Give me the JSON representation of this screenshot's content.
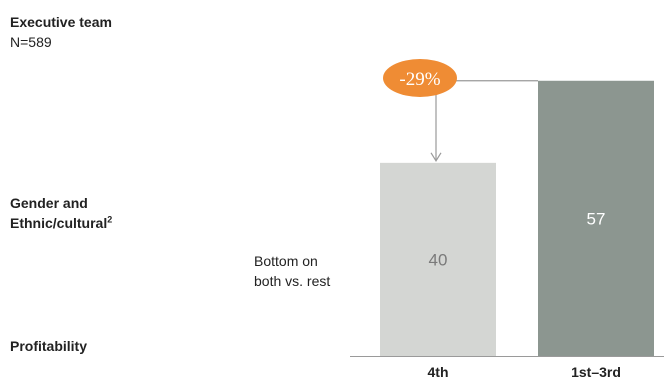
{
  "header": {
    "title": "Executive team",
    "subtitle": "N=589"
  },
  "labels": {
    "gender_line1": "Gender and",
    "gender_line2": "Ethnic/cultural",
    "gender_footnote": "2",
    "profitability": "Profitability",
    "note_line1": "Bottom on",
    "note_line2": "both vs. rest"
  },
  "chart_data": {
    "type": "bar",
    "categories": [
      "4th",
      "1st–3rd"
    ],
    "values": [
      40,
      57
    ],
    "value_labels": [
      "40",
      "57"
    ],
    "ylim": [
      0,
      70
    ],
    "grid": false,
    "bar_colors": [
      "#d4d6d3",
      "#8c9690"
    ],
    "label_colors": [
      "#7a7a7a",
      "#ffffff"
    ],
    "annotation": {
      "text": "-29%",
      "color": "#ef8c34"
    }
  }
}
